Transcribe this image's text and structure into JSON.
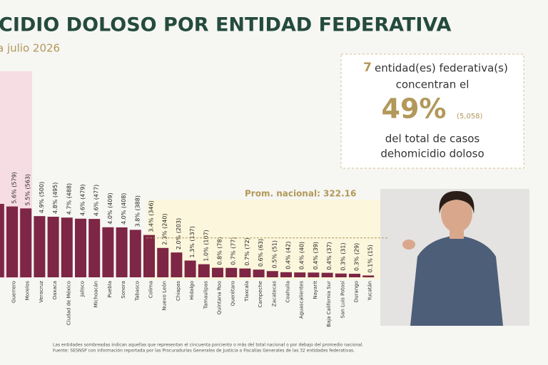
{
  "chart_data": {
    "type": "bar",
    "title": "CIDIO DOLOSO POR ENTIDAD FEDERATIVA",
    "subtitle": "a julio 2026",
    "categories": [
      null,
      "Guerrero",
      "Morelos",
      "Veracruz",
      "Oaxaca",
      "Ciudad de México",
      "Jalisco",
      "Michoacán",
      "Puebla",
      "Sonora",
      "Tabasco",
      "Colima",
      "Nuevo León",
      "Chiapas",
      "Hidalgo",
      "Tamaulipas",
      "Quintana Roo",
      "Querétaro",
      "Tlaxcala",
      "Campeche",
      "Zacatecas",
      "Coahuila",
      "Aguascalientes",
      "Nayarit",
      "Baja California Sur",
      "San Luis Potosí",
      "Durango",
      "Yucatán"
    ],
    "values": [
      600,
      579,
      563,
      500,
      495,
      488,
      479,
      477,
      409,
      408,
      388,
      346,
      240,
      203,
      137,
      107,
      78,
      77,
      72,
      63,
      51,
      42,
      40,
      39,
      37,
      31,
      29,
      15
    ],
    "value_labels": [
      null,
      "5.6% (579)",
      "5.5% (563)",
      "4.9% (500)",
      "4.8% (495)",
      "4.7% (488)",
      "4.6% (479)",
      "4.6% (477)",
      "4.0% (409)",
      "4.0% (408)",
      "3.8% (388)",
      "3.4% (346)",
      "2.3% (240)",
      "2.0% (203)",
      "1.3% (137)",
      "1.0% (107)",
      "0.8% (78)",
      "0.7% (77)",
      "0.7% (72)",
      "0.6% (63)",
      "0.5% (51)",
      "0.4% (42)",
      "0.4% (40)",
      "0.4% (39)",
      "0.4% (37)",
      "0.3% (31)",
      "0.3% (29)",
      "0.1% (15)"
    ],
    "color": "#7e2645",
    "ylim": [
      0,
      600
    ],
    "average": 322.16,
    "average_label": "Prom. nacional: 322.16",
    "summary": {
      "count": "7",
      "line1": "entidad(es) federativa(s)",
      "line2": "concentran el",
      "percent": "49%",
      "cases": "(5,058)",
      "line3": "del total de casos",
      "line4": "dehomicidio doloso"
    },
    "notes": [
      "Las entidades sombreadas indican aquellas que representan el cincuenta porciento o más del total nacional o por debajo del promedio nacional.",
      "Fuente: SESNSP con información reportada por las Procuradurías Generales de Justicia o Fiscalías Generales de las 32 entidades federativas."
    ]
  }
}
